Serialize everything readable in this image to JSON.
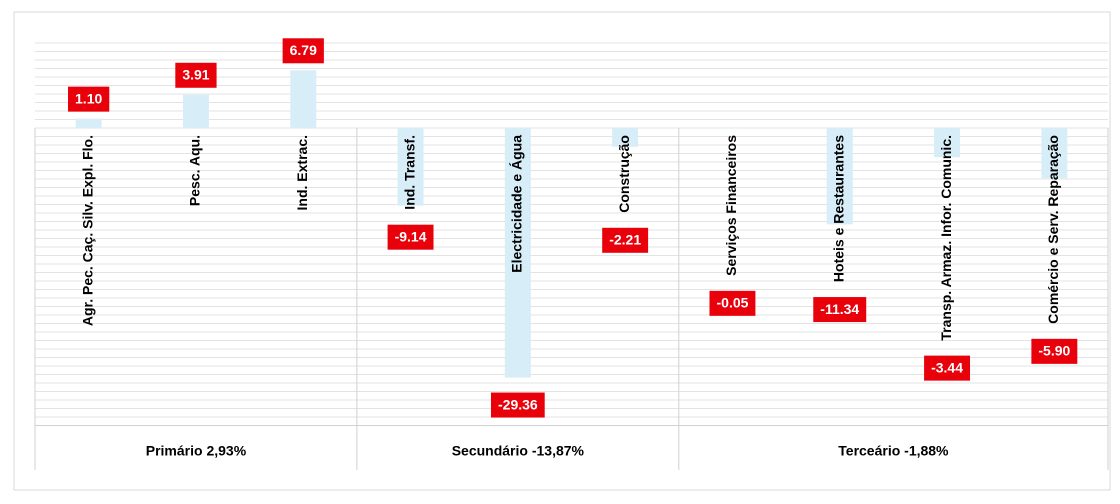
{
  "chart_data": {
    "type": "bar",
    "categories": [
      "Agr. Pec. Caç. Silv. Expl. Flo.",
      "Pesc. Aqu.",
      "Ind. Extrac.",
      "Ind. Transf.",
      "Electricidade e Água",
      "Construção",
      "Serviços Financeiros",
      "Hoteis e Restaurantes",
      "Transp. Armaz. Infor. Comunic.",
      "Comércio e Serv. Reparação"
    ],
    "values": [
      1.1,
      3.91,
      6.79,
      -9.14,
      -29.36,
      -2.21,
      -0.05,
      -11.34,
      -3.44,
      -5.9
    ],
    "value_labels": [
      "1.10",
      "3.91",
      "6.79",
      "-9.14",
      "-29.36",
      "-2.21",
      "-0.05",
      "-11.34",
      "-3.44",
      "-5.90"
    ],
    "groups": [
      {
        "name": "Primário 2,93%",
        "size": 3
      },
      {
        "name": "Secundário -13,87%",
        "size": 3
      },
      {
        "name": "Terceário  -1,88%",
        "size": 4
      }
    ],
    "color": "#d7eef9",
    "label_color": "#e8000b",
    "ylim": [
      -35,
      10
    ],
    "yticks": [
      -35,
      -34,
      -33,
      -32,
      -31,
      -30,
      -29,
      -28,
      -27,
      -26,
      -25,
      -24,
      -23,
      -22,
      -21,
      -20,
      -19,
      -18,
      -17,
      -16,
      -15,
      -14,
      -13,
      -12,
      -11,
      -10,
      -9,
      -8,
      -7,
      -6,
      -5,
      -4,
      -3,
      -2,
      -1,
      0,
      1,
      2,
      3,
      4,
      5,
      6,
      7,
      8,
      9,
      10
    ],
    "grid": true
  }
}
